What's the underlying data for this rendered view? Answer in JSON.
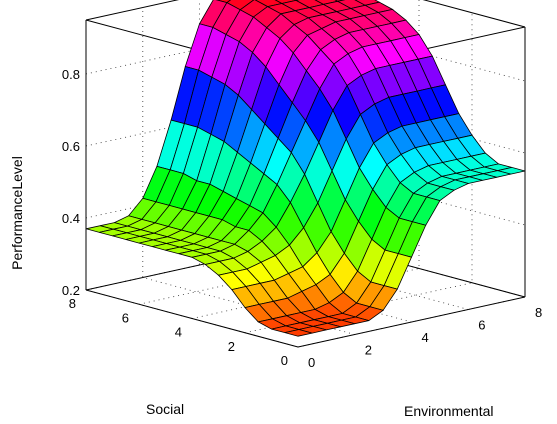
{
  "chart_data": {
    "type": "surface",
    "title": "",
    "xlabel": "Environmental",
    "ylabel": "Social",
    "zlabel": "PerformanceLevel",
    "xlim": [
      0,
      8
    ],
    "ylim": [
      0,
      8
    ],
    "zlim": [
      0.2,
      0.95
    ],
    "x_ticks": [
      "0",
      "2",
      "4",
      "6",
      "8"
    ],
    "y_ticks": [
      "0",
      "2",
      "4",
      "6",
      "8"
    ],
    "z_ticks": [
      "0.2",
      "0.4",
      "0.6",
      "0.8"
    ],
    "grid": true,
    "colormap": "hsv",
    "x": [
      0,
      0.5,
      1,
      1.5,
      2,
      2.5,
      3,
      3.5,
      4,
      4.5,
      5,
      5.5,
      6,
      6.5,
      7,
      7.5,
      8
    ],
    "y": [
      0,
      0.5,
      1,
      1.5,
      2,
      2.5,
      3,
      3.5,
      4,
      4.5,
      5,
      5.5,
      6,
      6.5,
      7,
      7.5,
      8
    ],
    "z_rows_note_removed": true,
    "z": [
      [
        0.23,
        0.23,
        0.23,
        0.23,
        0.23,
        0.23,
        0.25,
        0.3,
        0.38,
        0.46,
        0.52,
        0.54,
        0.55,
        0.55,
        0.55,
        0.55,
        0.55
      ],
      [
        0.23,
        0.23,
        0.23,
        0.23,
        0.23,
        0.23,
        0.25,
        0.3,
        0.38,
        0.46,
        0.52,
        0.54,
        0.55,
        0.55,
        0.55,
        0.55,
        0.55
      ],
      [
        0.23,
        0.23,
        0.23,
        0.23,
        0.23,
        0.23,
        0.25,
        0.3,
        0.38,
        0.46,
        0.52,
        0.54,
        0.55,
        0.55,
        0.55,
        0.55,
        0.55
      ],
      [
        0.24,
        0.24,
        0.24,
        0.24,
        0.24,
        0.25,
        0.27,
        0.32,
        0.4,
        0.48,
        0.54,
        0.56,
        0.57,
        0.57,
        0.57,
        0.57,
        0.57
      ],
      [
        0.27,
        0.27,
        0.27,
        0.27,
        0.28,
        0.29,
        0.31,
        0.36,
        0.44,
        0.52,
        0.58,
        0.6,
        0.61,
        0.61,
        0.61,
        0.61,
        0.61
      ],
      [
        0.31,
        0.31,
        0.31,
        0.31,
        0.32,
        0.33,
        0.36,
        0.41,
        0.49,
        0.57,
        0.63,
        0.65,
        0.66,
        0.66,
        0.66,
        0.66,
        0.66
      ],
      [
        0.34,
        0.34,
        0.34,
        0.35,
        0.36,
        0.38,
        0.42,
        0.48,
        0.56,
        0.64,
        0.7,
        0.72,
        0.73,
        0.73,
        0.73,
        0.73,
        0.73
      ],
      [
        0.36,
        0.36,
        0.36,
        0.37,
        0.39,
        0.42,
        0.48,
        0.55,
        0.63,
        0.71,
        0.77,
        0.79,
        0.8,
        0.8,
        0.8,
        0.8,
        0.8
      ],
      [
        0.37,
        0.37,
        0.37,
        0.38,
        0.41,
        0.45,
        0.52,
        0.6,
        0.68,
        0.76,
        0.82,
        0.84,
        0.85,
        0.85,
        0.85,
        0.85,
        0.85
      ],
      [
        0.37,
        0.37,
        0.37,
        0.38,
        0.41,
        0.46,
        0.54,
        0.63,
        0.72,
        0.8,
        0.85,
        0.87,
        0.88,
        0.88,
        0.88,
        0.88,
        0.88
      ],
      [
        0.37,
        0.37,
        0.37,
        0.38,
        0.42,
        0.47,
        0.56,
        0.66,
        0.76,
        0.84,
        0.88,
        0.89,
        0.9,
        0.9,
        0.9,
        0.9,
        0.9
      ],
      [
        0.37,
        0.37,
        0.37,
        0.38,
        0.42,
        0.48,
        0.58,
        0.69,
        0.8,
        0.87,
        0.9,
        0.91,
        0.91,
        0.91,
        0.91,
        0.91,
        0.91
      ],
      [
        0.37,
        0.37,
        0.37,
        0.38,
        0.42,
        0.49,
        0.6,
        0.72,
        0.83,
        0.89,
        0.92,
        0.92,
        0.92,
        0.92,
        0.92,
        0.92,
        0.92
      ],
      [
        0.37,
        0.37,
        0.37,
        0.38,
        0.42,
        0.49,
        0.61,
        0.74,
        0.85,
        0.91,
        0.93,
        0.93,
        0.93,
        0.93,
        0.93,
        0.93,
        0.93
      ],
      [
        0.37,
        0.37,
        0.37,
        0.38,
        0.42,
        0.5,
        0.62,
        0.75,
        0.86,
        0.92,
        0.94,
        0.94,
        0.94,
        0.94,
        0.94,
        0.94,
        0.94
      ],
      [
        0.37,
        0.37,
        0.37,
        0.38,
        0.42,
        0.5,
        0.62,
        0.76,
        0.87,
        0.93,
        0.95,
        0.95,
        0.95,
        0.95,
        0.95,
        0.95,
        0.95
      ],
      [
        0.37,
        0.37,
        0.37,
        0.38,
        0.42,
        0.5,
        0.62,
        0.76,
        0.87,
        0.93,
        0.95,
        0.95,
        0.95,
        0.95,
        0.95,
        0.95,
        0.95
      ]
    ]
  }
}
